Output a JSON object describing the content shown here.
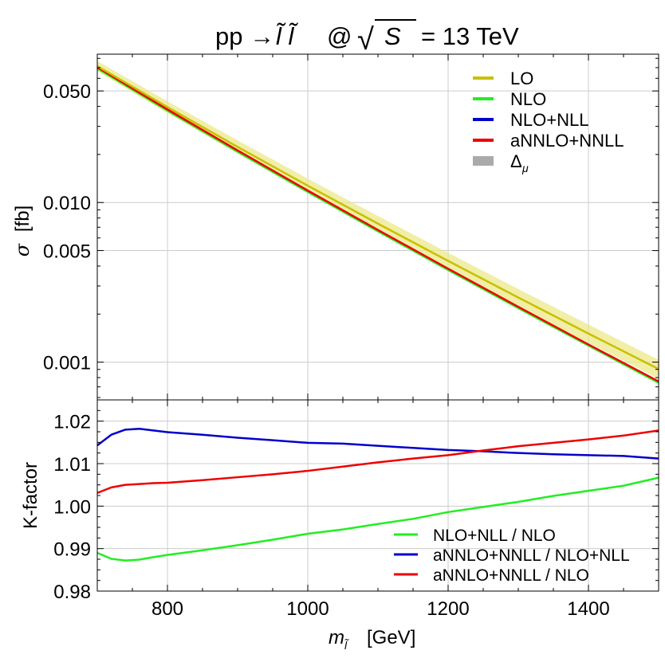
{
  "chart_data": [
    {
      "type": "line",
      "title_main": "pp → ",
      "title_particle": "l̃ l̃",
      "title_at": "@",
      "title_sqrt_symbol": "√",
      "title_sqrt_var": "S",
      "title_energy": "= 13 TeV",
      "ylabel_symbol": "σ",
      "ylabel_unit": "[fb]",
      "yscale": "log",
      "ylim": [
        0.00058,
        0.085
      ],
      "xlim": [
        700,
        1500
      ],
      "y_ticks": [
        {
          "value": 0.05,
          "label": "0.050"
        },
        {
          "value": 0.01,
          "label": "0.010"
        },
        {
          "value": 0.005,
          "label": "0.005"
        },
        {
          "value": 0.001,
          "label": "0.001"
        }
      ],
      "x": [
        700,
        800,
        900,
        1000,
        1100,
        1200,
        1300,
        1400,
        1500
      ],
      "series": [
        {
          "name": "LO",
          "color": "#c8c000",
          "values": [
            0.0715,
            0.0396,
            0.0223,
            0.01275,
            0.00737,
            0.00431,
            0.00254,
            0.00151,
            0.000905
          ],
          "band_low": [
            0.0665,
            0.0364,
            0.0203,
            0.0115,
            0.0066,
            0.00383,
            0.00224,
            0.00132,
            0.000785
          ],
          "band_high": [
            0.077,
            0.0431,
            0.0245,
            0.01412,
            0.00823,
            0.00484,
            0.00287,
            0.00172,
            0.001035
          ]
        },
        {
          "name": "NLO",
          "color": "#22ee22",
          "values": [
            0.0692,
            0.0376,
            0.0208,
            0.01165,
            0.0066,
            0.00378,
            0.00218,
            0.00127,
            0.000742
          ]
        },
        {
          "name": "NLO+NLL",
          "color": "#0000cc",
          "values": [
            0.0702,
            0.0382,
            0.0211,
            0.01183,
            0.0067,
            0.00383,
            0.00221,
            0.00128,
            0.000751
          ]
        },
        {
          "name": "aNNLO+NNLL",
          "color": "#ee0000",
          "values": [
            0.0704,
            0.0383,
            0.0212,
            0.01188,
            0.00673,
            0.00385,
            0.00222,
            0.00129,
            0.000757
          ]
        }
      ],
      "legend": [
        {
          "label": "LO",
          "color": "#c8c000"
        },
        {
          "label": "NLO",
          "color": "#22ee22"
        },
        {
          "label": "NLO+NLL",
          "color": "#0000cc"
        },
        {
          "label": "aNNLO+NNLL",
          "color": "#ee0000"
        },
        {
          "label": "Δ",
          "sub": "μ",
          "color": "#aaaaaa"
        }
      ],
      "legend_position": "top-right"
    },
    {
      "type": "line",
      "ylabel": "K-factor",
      "xlabel_symbol": "m",
      "xlabel_sub": "l̃",
      "xlabel_unit": "[GeV]",
      "xlim": [
        700,
        1500
      ],
      "ylim": [
        0.98,
        1.025
      ],
      "y_ticks": [
        {
          "value": 0.98,
          "label": "0.98"
        },
        {
          "value": 0.99,
          "label": "0.99"
        },
        {
          "value": 1.0,
          "label": "1.00"
        },
        {
          "value": 1.01,
          "label": "1.01"
        },
        {
          "value": 1.02,
          "label": "1.02"
        }
      ],
      "x_ticks": [
        {
          "value": 800,
          "label": "800"
        },
        {
          "value": 1000,
          "label": "1000"
        },
        {
          "value": 1200,
          "label": "1200"
        },
        {
          "value": 1400,
          "label": "1400"
        }
      ],
      "x": [
        700,
        720,
        740,
        760,
        780,
        800,
        850,
        900,
        950,
        1000,
        1050,
        1100,
        1150,
        1200,
        1250,
        1300,
        1350,
        1400,
        1450,
        1500
      ],
      "series": [
        {
          "name": "NLO+NLL / NLO",
          "color": "#22ee22",
          "values": [
            0.989,
            0.9876,
            0.9872,
            0.9874,
            0.988,
            0.9885,
            0.9896,
            0.9908,
            0.9921,
            0.9935,
            0.9945,
            0.9958,
            0.997,
            0.9986,
            0.9998,
            1.001,
            1.0024,
            1.0036,
            1.0048,
            1.0067
          ]
        },
        {
          "name": "aNNLO+NNLL / NLO+NLL",
          "color": "#0000cc",
          "values": [
            1.0143,
            1.0168,
            1.018,
            1.0182,
            1.0178,
            1.0174,
            1.0168,
            1.0161,
            1.0155,
            1.0149,
            1.0147,
            1.0142,
            1.0137,
            1.0132,
            1.0129,
            1.0125,
            1.0122,
            1.012,
            1.0118,
            1.0112
          ]
        },
        {
          "name": "aNNLO+NNLL / NLO",
          "color": "#ee0000",
          "values": [
            1.0031,
            1.0044,
            1.005,
            1.0052,
            1.0054,
            1.0055,
            1.0061,
            1.0068,
            1.0075,
            1.0083,
            1.0093,
            1.0103,
            1.0112,
            1.012,
            1.0131,
            1.0141,
            1.0149,
            1.0157,
            1.0166,
            1.0178
          ]
        }
      ],
      "legend": [
        {
          "label": "NLO+NLL / NLO",
          "color": "#22ee22"
        },
        {
          "label": "aNNLO+NNLL / NLO+NLL",
          "color": "#0000cc"
        },
        {
          "label": "aNNLO+NNLL / NLO",
          "color": "#ee0000"
        }
      ],
      "legend_position": "bottom-right"
    }
  ]
}
